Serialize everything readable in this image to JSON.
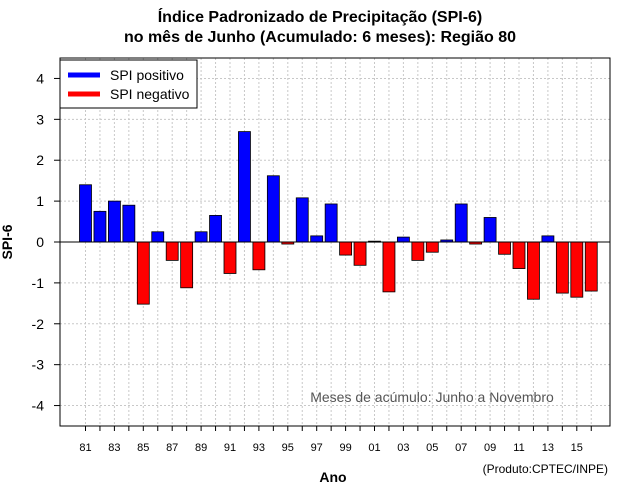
{
  "chart_data": {
    "type": "bar",
    "title": "Índice Padronizado de Precipitação (SPI-6)",
    "subtitle": "no mês de Junho (Acumulado: 6 meses): Região 80",
    "xlabel": "Ano",
    "ylabel": "SPI-6",
    "ylim": [
      -4.5,
      4.5
    ],
    "yticks": [
      -4,
      -3,
      -2,
      -1,
      0,
      1,
      2,
      3,
      4
    ],
    "grid": true,
    "legend_position": "top-left",
    "annotation": "Meses de acúmulo: Junho a Novembro",
    "credit": "(Produto:CPTEC/INPE)",
    "legend": [
      {
        "label": "SPI positivo",
        "color": "#0000ff"
      },
      {
        "label": "SPI negativo",
        "color": "#ff0000"
      }
    ],
    "positive_color": "#0000ff",
    "negative_color": "#ff0000",
    "categories": [
      "81",
      "82",
      "83",
      "84",
      "85",
      "86",
      "87",
      "88",
      "89",
      "90",
      "91",
      "92",
      "93",
      "94",
      "95",
      "96",
      "97",
      "98",
      "99",
      "00",
      "01",
      "02",
      "03",
      "04",
      "05",
      "06",
      "07",
      "08",
      "09",
      "10",
      "11",
      "12",
      "13",
      "14",
      "15",
      "16"
    ],
    "tick_labels": [
      "81",
      "83",
      "85",
      "87",
      "89",
      "91",
      "93",
      "95",
      "97",
      "99",
      "01",
      "03",
      "05",
      "07",
      "09",
      "11",
      "13",
      "15"
    ],
    "values": [
      1.4,
      0.75,
      1.0,
      0.9,
      -1.52,
      0.25,
      -0.45,
      -1.12,
      0.25,
      0.65,
      -0.77,
      2.7,
      -0.68,
      1.62,
      -0.05,
      1.08,
      0.15,
      0.93,
      -0.32,
      -0.57,
      0.02,
      -1.22,
      0.12,
      -0.45,
      -0.25,
      0.05,
      0.93,
      -0.05,
      0.6,
      -0.3,
      -0.65,
      -1.4,
      0.15,
      -1.25,
      -1.35,
      -1.2
    ]
  }
}
